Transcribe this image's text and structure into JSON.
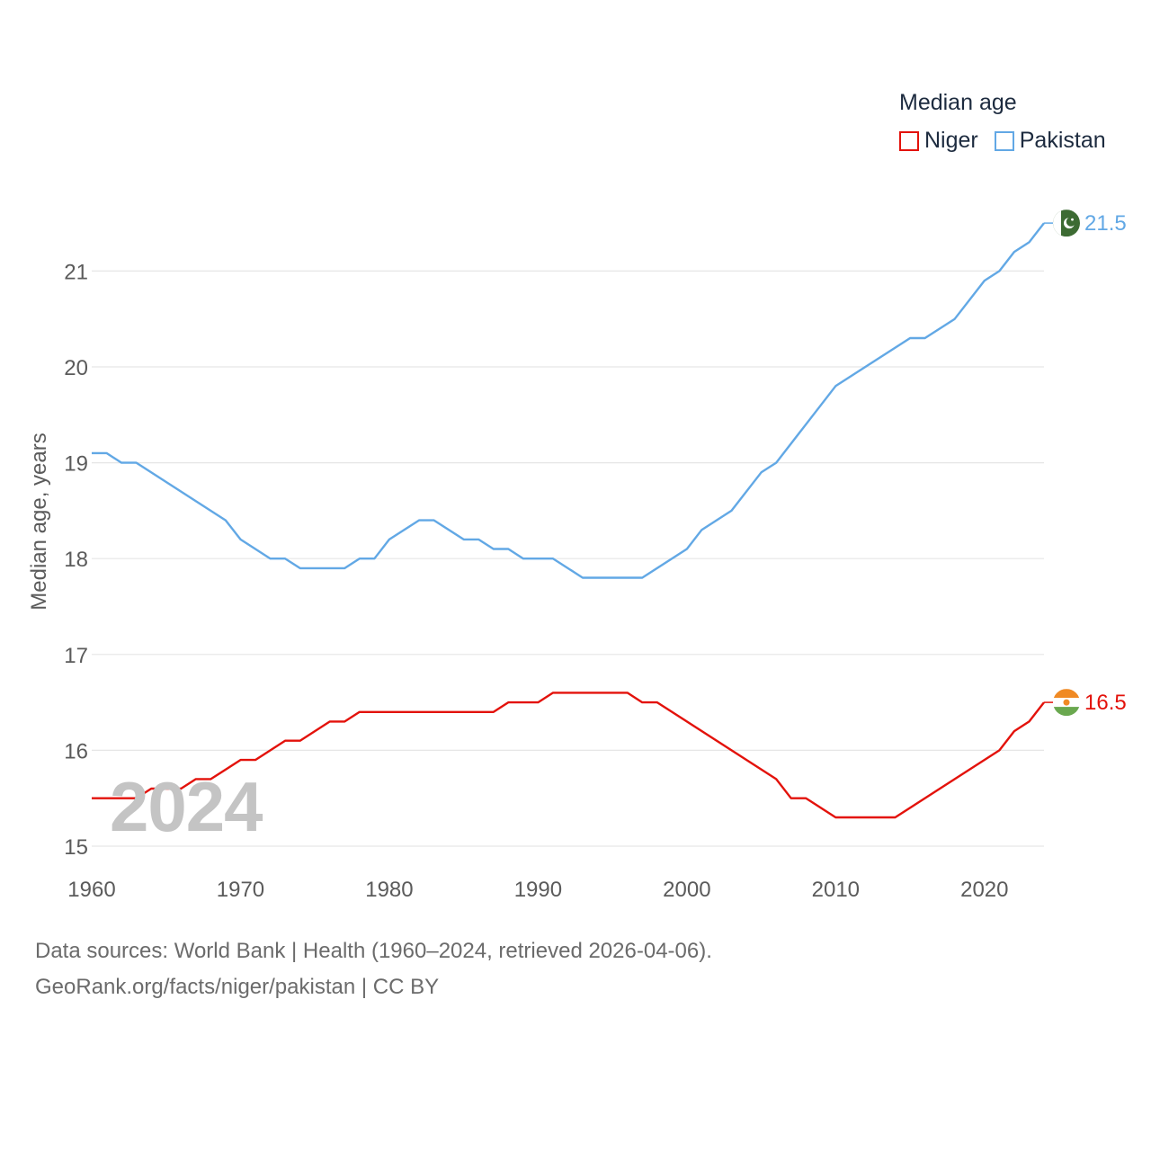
{
  "chart_data": {
    "type": "line",
    "title": "Median age",
    "ylabel": "Median age, years",
    "xlabel": "",
    "xlim": [
      1960,
      2024
    ],
    "ylim": [
      15,
      21.6
    ],
    "yticks": [
      15,
      16,
      17,
      18,
      19,
      20,
      21
    ],
    "xticks": [
      1960,
      1970,
      1980,
      1990,
      2000,
      2010,
      2020
    ],
    "current_year": "2024",
    "series": [
      {
        "name": "Niger",
        "color": "#e3120b",
        "end_label": "16.5",
        "flag": "niger-flag",
        "points": [
          [
            1960,
            15.5
          ],
          [
            1963,
            15.5
          ],
          [
            1964,
            15.6
          ],
          [
            1966,
            15.6
          ],
          [
            1967,
            15.7
          ],
          [
            1968,
            15.7
          ],
          [
            1970,
            15.9
          ],
          [
            1971,
            15.9
          ],
          [
            1973,
            16.1
          ],
          [
            1974,
            16.1
          ],
          [
            1976,
            16.3
          ],
          [
            1977,
            16.3
          ],
          [
            1978,
            16.4
          ],
          [
            1987,
            16.4
          ],
          [
            1988,
            16.5
          ],
          [
            1990,
            16.5
          ],
          [
            1991,
            16.6
          ],
          [
            1996,
            16.6
          ],
          [
            1997,
            16.5
          ],
          [
            1998,
            16.5
          ],
          [
            2006,
            15.7
          ],
          [
            2007,
            15.5
          ],
          [
            2008,
            15.5
          ],
          [
            2010,
            15.3
          ],
          [
            2014,
            15.3
          ],
          [
            2021,
            16.0
          ],
          [
            2022,
            16.2
          ],
          [
            2023,
            16.3
          ],
          [
            2024,
            16.5
          ]
        ]
      },
      {
        "name": "Pakistan",
        "color": "#62a8e5",
        "end_label": "21.5",
        "flag": "pakistan-flag",
        "points": [
          [
            1960,
            19.1
          ],
          [
            1961,
            19.1
          ],
          [
            1962,
            19.0
          ],
          [
            1963,
            19.0
          ],
          [
            1969,
            18.4
          ],
          [
            1970,
            18.2
          ],
          [
            1972,
            18.0
          ],
          [
            1973,
            18.0
          ],
          [
            1974,
            17.9
          ],
          [
            1977,
            17.9
          ],
          [
            1978,
            18.0
          ],
          [
            1979,
            18.0
          ],
          [
            1980,
            18.2
          ],
          [
            1982,
            18.4
          ],
          [
            1983,
            18.4
          ],
          [
            1985,
            18.2
          ],
          [
            1986,
            18.2
          ],
          [
            1987,
            18.1
          ],
          [
            1988,
            18.1
          ],
          [
            1989,
            18.0
          ],
          [
            1991,
            18.0
          ],
          [
            1993,
            17.8
          ],
          [
            1997,
            17.8
          ],
          [
            2000,
            18.1
          ],
          [
            2001,
            18.3
          ],
          [
            2003,
            18.5
          ],
          [
            2005,
            18.9
          ],
          [
            2006,
            19.0
          ],
          [
            2010,
            19.8
          ],
          [
            2015,
            20.3
          ],
          [
            2016,
            20.3
          ],
          [
            2018,
            20.5
          ],
          [
            2020,
            20.9
          ],
          [
            2021,
            21.0
          ],
          [
            2022,
            21.2
          ],
          [
            2023,
            21.3
          ],
          [
            2024,
            21.5
          ]
        ]
      }
    ]
  },
  "legend": {
    "title": "Median age",
    "items": [
      "Niger",
      "Pakistan"
    ]
  },
  "footer": {
    "line1": "Data sources: World Bank | Health (1960–2024, retrieved 2026-04-06).",
    "line2": "GeoRank.org/facts/niger/pakistan | CC BY"
  }
}
